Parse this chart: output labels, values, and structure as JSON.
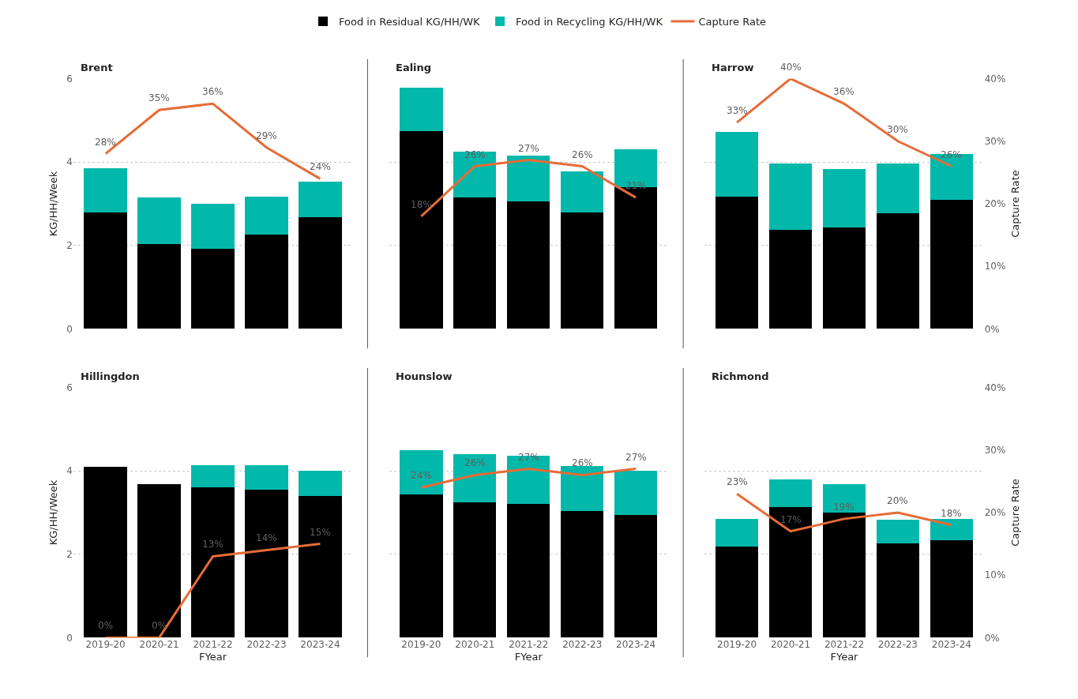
{
  "chart_data": [
    {
      "type": "bar",
      "title": "Brent",
      "categories": [
        "2019-20",
        "2020-21",
        "2021-22",
        "2022-23",
        "2023-24"
      ],
      "stacked": true,
      "ylabel": "KG/HH/Week",
      "ylim": [
        0,
        6
      ],
      "yticks": [
        0,
        2,
        4,
        6
      ],
      "grid": "y",
      "legend": "top",
      "tick_labels": "y",
      "series": [
        {
          "name": "Food in Residual KG/HH/WK",
          "color": "#000000",
          "values": [
            2.79,
            2.04,
            1.93,
            2.26,
            2.68
          ]
        },
        {
          "name": "Food in Recycling KG/HH/WK",
          "color": "#01b8aa",
          "values": [
            1.07,
            1.11,
            1.08,
            0.92,
            0.86
          ]
        },
        {
          "name": "Capture Rate",
          "type": "line",
          "axis": "y2",
          "color": "#e66c37",
          "values": [
            28,
            35,
            36,
            29,
            24
          ],
          "value_labels": [
            "28%",
            "35%",
            "36%",
            "29%",
            "24%"
          ]
        }
      ]
    },
    {
      "type": "bar",
      "title": "Ealing",
      "categories": [
        "2019-20",
        "2020-21",
        "2021-22",
        "2022-23",
        "2023-24"
      ],
      "stacked": true,
      "ylim": [
        0,
        6
      ],
      "yticks": [
        0,
        2,
        4,
        6
      ],
      "grid": "y",
      "tick_labels": false,
      "series": [
        {
          "color": "#000000",
          "values": [
            4.75,
            3.15,
            3.05,
            2.8,
            3.39
          ]
        },
        {
          "color": "#01b8aa",
          "values": [
            1.04,
            1.11,
            1.11,
            0.98,
            0.92
          ]
        },
        {
          "type": "line",
          "axis": "y2",
          "color": "#e66c37",
          "values": [
            18,
            26,
            27,
            26,
            21
          ],
          "value_labels": [
            "18%",
            "26%",
            "27%",
            "26%",
            "21%"
          ]
        }
      ]
    },
    {
      "type": "bar",
      "title": "Harrow",
      "categories": [
        "2019-20",
        "2020-21",
        "2021-22",
        "2022-23",
        "2023-24"
      ],
      "stacked": true,
      "y2label": "Capture Rate",
      "ylim": [
        0,
        6
      ],
      "yticks": [
        0,
        2,
        4,
        6
      ],
      "y2lim": [
        0,
        40
      ],
      "y2ticks": [
        {
          "value": 0,
          "label": "0%"
        },
        {
          "value": 10,
          "label": "10%"
        },
        {
          "value": 20,
          "label": "20%"
        },
        {
          "value": 30,
          "label": "30%"
        },
        {
          "value": 40,
          "label": "40%"
        }
      ],
      "grid": "y",
      "tick_labels": false,
      "series": [
        {
          "color": "#000000",
          "values": [
            3.18,
            2.38,
            2.44,
            2.77,
            3.09
          ]
        },
        {
          "color": "#01b8aa",
          "values": [
            1.55,
            1.58,
            1.39,
            1.19,
            1.1
          ]
        },
        {
          "type": "line",
          "axis": "y2",
          "color": "#e66c37",
          "values": [
            33,
            40,
            36,
            30,
            26
          ],
          "value_labels": [
            "33%",
            "40%",
            "36%",
            "30%",
            "26%"
          ]
        }
      ]
    },
    {
      "type": "bar",
      "title": "Hillingdon",
      "categories": [
        "2019-20",
        "2020-21",
        "2021-22",
        "2022-23",
        "2023-24"
      ],
      "stacked": true,
      "xlabel": "FYear",
      "ylabel": "KG/HH/Week",
      "ylim": [
        0,
        6
      ],
      "yticks": [
        0,
        2,
        4,
        6
      ],
      "grid": "y",
      "series": [
        {
          "color": "#000000",
          "values": [
            4.09,
            3.68,
            3.61,
            3.55,
            3.4
          ]
        },
        {
          "color": "#01b8aa",
          "values": [
            0,
            0,
            0.53,
            0.58,
            0.6
          ]
        },
        {
          "type": "line",
          "axis": "y2",
          "color": "#e66c37",
          "values": [
            0,
            0,
            13,
            14,
            15
          ],
          "value_labels": [
            "0%",
            "0%",
            "13%",
            "14%",
            "15%"
          ]
        }
      ]
    },
    {
      "type": "bar",
      "title": "Hounslow",
      "categories": [
        "2019-20",
        "2020-21",
        "2021-22",
        "2022-23",
        "2023-24"
      ],
      "stacked": true,
      "xlabel": "FYear",
      "ylim": [
        0,
        6
      ],
      "yticks": [
        0,
        2,
        4,
        6
      ],
      "grid": "y",
      "tick_labels": "x",
      "series": [
        {
          "color": "#000000",
          "values": [
            3.43,
            3.25,
            3.2,
            3.04,
            2.94
          ]
        },
        {
          "color": "#01b8aa",
          "values": [
            1.06,
            1.15,
            1.16,
            1.07,
            1.07
          ]
        },
        {
          "type": "line",
          "axis": "y2",
          "color": "#e66c37",
          "values": [
            24,
            26,
            27,
            26,
            27
          ],
          "value_labels": [
            "24%",
            "26%",
            "27%",
            "26%",
            "27%"
          ]
        }
      ]
    },
    {
      "type": "bar",
      "title": "Richmond",
      "categories": [
        "2019-20",
        "2020-21",
        "2021-22",
        "2022-23",
        "2023-24"
      ],
      "stacked": true,
      "xlabel": "FYear",
      "y2label": "Capture Rate",
      "ylim": [
        0,
        6
      ],
      "yticks": [
        0,
        2,
        4,
        6
      ],
      "y2lim": [
        0,
        40
      ],
      "y2ticks": [
        {
          "value": 0,
          "label": "0%"
        },
        {
          "value": 10,
          "label": "10%"
        },
        {
          "value": 20,
          "label": "20%"
        },
        {
          "value": 30,
          "label": "30%"
        },
        {
          "value": 40,
          "label": "40%"
        }
      ],
      "grid": "y",
      "tick_labels": "x",
      "series": [
        {
          "color": "#000000",
          "values": [
            2.18,
            3.14,
            2.99,
            2.27,
            2.34
          ]
        },
        {
          "color": "#01b8aa",
          "values": [
            0.66,
            0.65,
            0.7,
            0.56,
            0.51
          ]
        },
        {
          "type": "line",
          "axis": "y2",
          "color": "#e66c37",
          "values": [
            23,
            17,
            19,
            20,
            18
          ],
          "value_labels": [
            "23%",
            "17%",
            "19%",
            "20%",
            "18%"
          ]
        }
      ]
    }
  ]
}
